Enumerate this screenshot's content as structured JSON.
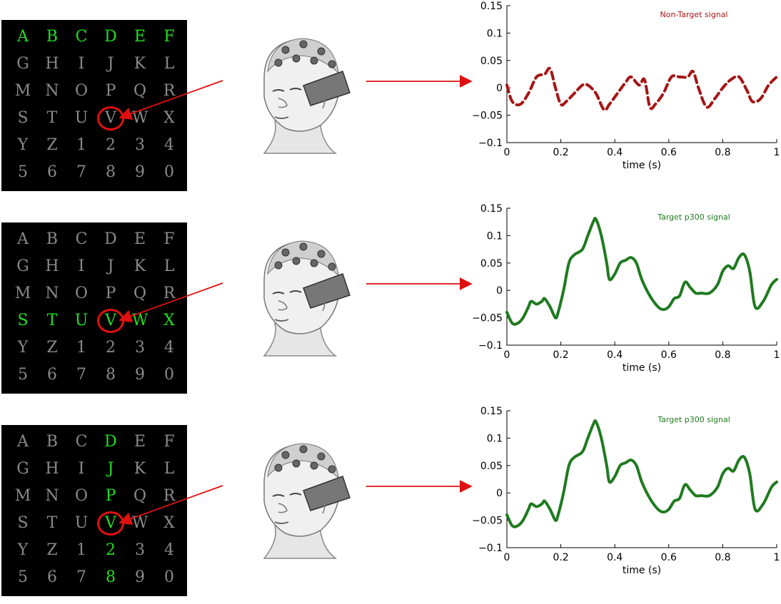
{
  "letters": [
    "A",
    "B",
    "C",
    "D",
    "E",
    "F",
    "G",
    "H",
    "I",
    "J",
    "K",
    "L",
    "M",
    "N",
    "O",
    "P",
    "Q",
    "R",
    "S",
    "T",
    "U",
    "V",
    "W",
    "X",
    "Y",
    "Z",
    "1",
    "2",
    "3",
    "4",
    "5",
    "6",
    "7",
    "8",
    "9",
    "0"
  ],
  "colors": {
    "dim": "#8a8a8a",
    "highlight": "#22dd22",
    "arrow": "#e01010",
    "non_target": "#a51515",
    "target": "#1f7a1f"
  },
  "panels": [
    {
      "highlight": "row",
      "index": 0,
      "legend": "Non-Target signal"
    },
    {
      "highlight": "row",
      "index": 3,
      "legend": "Target p300 signal"
    },
    {
      "highlight": "col",
      "index": 3,
      "legend": "Target p300 signal"
    }
  ],
  "chart_data": [
    {
      "type": "line",
      "legend": [
        "Non-Target signal"
      ],
      "xlabel": "time (s)",
      "xlim": [
        0,
        1
      ],
      "ylim": [
        -0.1,
        0.15
      ],
      "xticks": [
        "0",
        "0.2",
        "0.4",
        "0.6",
        "0.8",
        "1"
      ],
      "yticks": [
        "−0.1",
        "−0.05",
        "0",
        "0.05",
        "0.1",
        "0.15"
      ],
      "x": [
        0,
        0.02,
        0.05,
        0.08,
        0.11,
        0.14,
        0.16,
        0.18,
        0.2,
        0.22,
        0.25,
        0.28,
        0.3,
        0.33,
        0.36,
        0.38,
        0.41,
        0.44,
        0.46,
        0.49,
        0.51,
        0.53,
        0.55,
        0.58,
        0.61,
        0.64,
        0.67,
        0.69,
        0.71,
        0.74,
        0.77,
        0.8,
        0.83,
        0.86,
        0.89,
        0.91,
        0.94,
        0.97,
        1.0
      ],
      "y": [
        0.005,
        -0.025,
        -0.03,
        -0.01,
        0.02,
        0.025,
        0.035,
        0.0,
        -0.03,
        -0.025,
        -0.01,
        0.005,
        0.005,
        -0.01,
        -0.04,
        -0.03,
        -0.01,
        0.01,
        0.02,
        0.005,
        0.015,
        -0.035,
        -0.03,
        -0.01,
        0.02,
        0.02,
        0.02,
        0.03,
        0.0,
        -0.035,
        -0.02,
        0.0,
        0.015,
        0.02,
        -0.005,
        -0.025,
        -0.02,
        0.005,
        0.02
      ],
      "style": "dashed"
    },
    {
      "type": "line",
      "legend": [
        "Target p300 signal"
      ],
      "xlabel": "time (s)",
      "xlim": [
        0,
        1
      ],
      "ylim": [
        -0.1,
        0.15
      ],
      "xticks": [
        "0",
        "0.2",
        "0.4",
        "0.6",
        "0.8",
        "1"
      ],
      "yticks": [
        "−0.1",
        "−0.05",
        "0",
        "0.05",
        "0.1",
        "0.15"
      ],
      "x": [
        0,
        0.02,
        0.04,
        0.06,
        0.08,
        0.09,
        0.11,
        0.13,
        0.14,
        0.16,
        0.18,
        0.19,
        0.21,
        0.23,
        0.25,
        0.28,
        0.3,
        0.32,
        0.33,
        0.35,
        0.37,
        0.38,
        0.4,
        0.42,
        0.44,
        0.46,
        0.48,
        0.5,
        0.53,
        0.56,
        0.58,
        0.6,
        0.62,
        0.64,
        0.66,
        0.68,
        0.7,
        0.72,
        0.75,
        0.78,
        0.8,
        0.82,
        0.84,
        0.86,
        0.88,
        0.9,
        0.92,
        0.95,
        0.98,
        1.0
      ],
      "y": [
        -0.04,
        -0.06,
        -0.06,
        -0.05,
        -0.03,
        -0.02,
        -0.025,
        -0.02,
        -0.015,
        -0.03,
        -0.05,
        -0.04,
        0.0,
        0.05,
        0.065,
        0.075,
        0.1,
        0.125,
        0.13,
        0.1,
        0.05,
        0.02,
        0.03,
        0.05,
        0.055,
        0.06,
        0.05,
        0.02,
        -0.01,
        -0.03,
        -0.035,
        -0.03,
        -0.015,
        -0.01,
        0.015,
        0.005,
        -0.005,
        -0.005,
        -0.005,
        0.01,
        0.035,
        0.045,
        0.04,
        0.06,
        0.065,
        0.035,
        -0.03,
        -0.02,
        0.01,
        0.02
      ],
      "style": "solid"
    },
    {
      "type": "line",
      "legend": [
        "Target p300 signal"
      ],
      "xlabel": "time (s)",
      "xlim": [
        0,
        1
      ],
      "ylim": [
        -0.1,
        0.15
      ],
      "xticks": [
        "0",
        "0.2",
        "0.4",
        "0.6",
        "0.8",
        "1"
      ],
      "yticks": [
        "−0.1",
        "−0.05",
        "0",
        "0.05",
        "0.1",
        "0.15"
      ],
      "x": [
        0,
        0.02,
        0.04,
        0.06,
        0.08,
        0.09,
        0.11,
        0.13,
        0.14,
        0.16,
        0.18,
        0.19,
        0.21,
        0.23,
        0.25,
        0.28,
        0.3,
        0.32,
        0.33,
        0.35,
        0.37,
        0.38,
        0.4,
        0.42,
        0.44,
        0.46,
        0.48,
        0.5,
        0.53,
        0.56,
        0.58,
        0.6,
        0.62,
        0.64,
        0.66,
        0.68,
        0.7,
        0.72,
        0.75,
        0.78,
        0.8,
        0.82,
        0.84,
        0.86,
        0.88,
        0.9,
        0.92,
        0.95,
        0.98,
        1.0
      ],
      "y": [
        -0.04,
        -0.06,
        -0.06,
        -0.05,
        -0.03,
        -0.02,
        -0.025,
        -0.02,
        -0.015,
        -0.03,
        -0.05,
        -0.04,
        0.0,
        0.05,
        0.065,
        0.075,
        0.1,
        0.125,
        0.13,
        0.1,
        0.05,
        0.02,
        0.03,
        0.05,
        0.055,
        0.06,
        0.05,
        0.02,
        -0.01,
        -0.03,
        -0.035,
        -0.03,
        -0.015,
        -0.01,
        0.015,
        0.005,
        -0.005,
        -0.005,
        -0.005,
        0.01,
        0.035,
        0.045,
        0.04,
        0.06,
        0.065,
        0.035,
        -0.03,
        -0.02,
        0.01,
        0.02
      ],
      "style": "solid"
    }
  ]
}
